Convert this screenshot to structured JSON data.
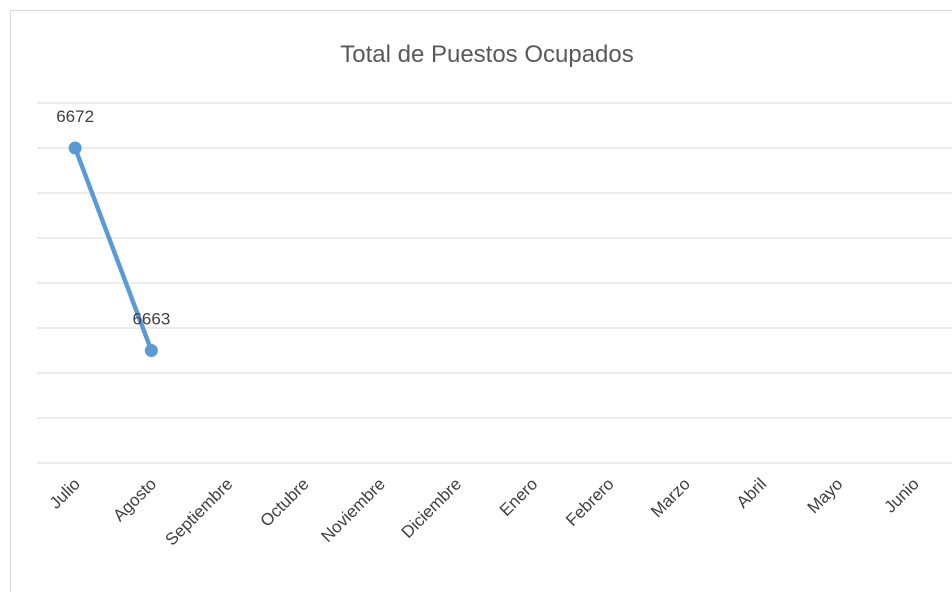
{
  "chart_data": {
    "type": "line",
    "title": "Total de Puestos Ocupados",
    "categories": [
      "Julio",
      "Agosto",
      "Septiembre",
      "Octubre",
      "Noviembre",
      "Diciembre",
      "Enero",
      "Febrero",
      "Marzo",
      "Abril",
      "Mayo",
      "Junio"
    ],
    "series": [
      {
        "name": "Total de Puestos Ocupados",
        "color": "#5b9bd5",
        "values": [
          6672,
          6663,
          null,
          null,
          null,
          null,
          null,
          null,
          null,
          null,
          null,
          null
        ]
      }
    ],
    "ylim": [
      6658,
      6674
    ],
    "yticks": [
      6658,
      6660,
      6662,
      6664,
      6666,
      6668,
      6670,
      6672,
      6674
    ],
    "grid": true
  }
}
